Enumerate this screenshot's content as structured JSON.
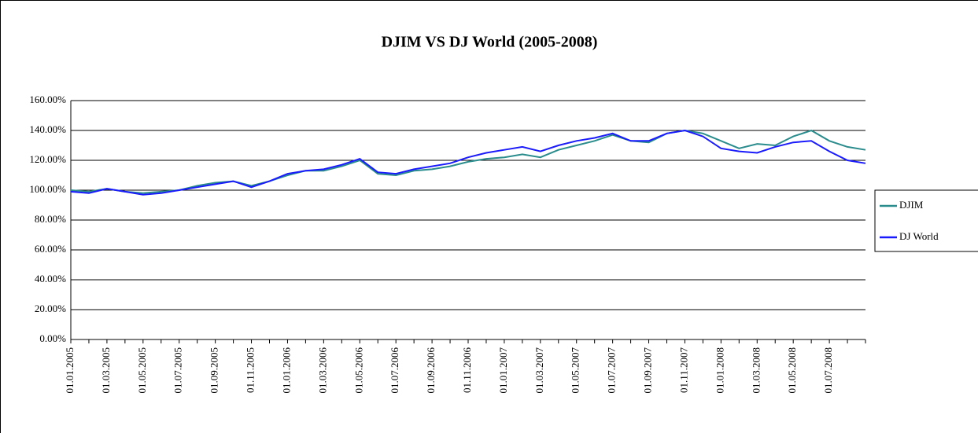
{
  "chart_data": {
    "type": "line",
    "title": "DJIM VS DJ World (2005-2008)",
    "categories": [
      "01.01.2005",
      null,
      "01.03.2005",
      null,
      "01.05.2005",
      null,
      "01.07.2005",
      null,
      "01.09.2005",
      null,
      "01.11.2005",
      null,
      "01.01.2006",
      null,
      "01.03.2006",
      null,
      "01.05.2006",
      null,
      "01.07.2006",
      null,
      "01.09.2006",
      null,
      "01.11.2006",
      null,
      "01.01.2007",
      null,
      "01.03.2007",
      null,
      "01.05.2007",
      null,
      "01.07.2007",
      null,
      "01.09.2007",
      null,
      "01.11.2007",
      null,
      "01.01.2008",
      null,
      "01.03.2008",
      null,
      "01.05.2008",
      null,
      "01.07.2008",
      null,
      null
    ],
    "series": [
      {
        "name": "DJIM",
        "color": "#2a8c8c",
        "values": [
          100,
          99,
          101,
          99,
          98,
          99,
          100,
          103,
          105,
          106,
          103,
          106,
          110,
          113,
          113,
          116,
          120,
          111,
          110,
          113,
          114,
          116,
          119,
          121,
          122,
          124,
          122,
          127,
          130,
          133,
          137,
          133,
          132,
          138,
          140,
          138,
          133,
          128,
          131,
          130,
          136,
          140,
          133,
          129,
          127
        ]
      },
      {
        "name": "DJ World",
        "color": "#1a1aff",
        "values": [
          99,
          98,
          101,
          99,
          97,
          98,
          100,
          102,
          104,
          106,
          102,
          106,
          111,
          113,
          114,
          117,
          121,
          112,
          111,
          114,
          116,
          118,
          122,
          125,
          127,
          129,
          126,
          130,
          133,
          135,
          138,
          133,
          133,
          138,
          140,
          136,
          128,
          126,
          125,
          129,
          132,
          133,
          126,
          120,
          118
        ]
      }
    ],
    "ylim": [
      0,
      160
    ],
    "yticks": [
      {
        "value": 0,
        "label": "0.00%"
      },
      {
        "value": 20,
        "label": "20.00%"
      },
      {
        "value": 40,
        "label": "40.00%"
      },
      {
        "value": 60,
        "label": "60.00%"
      },
      {
        "value": 80,
        "label": "80.00%"
      },
      {
        "value": 100,
        "label": "100.00%"
      },
      {
        "value": 120,
        "label": "120.00%"
      },
      {
        "value": 140,
        "label": "140.00%"
      },
      {
        "value": 160,
        "label": "160.00%"
      }
    ],
    "grid": true,
    "legend": "right"
  }
}
